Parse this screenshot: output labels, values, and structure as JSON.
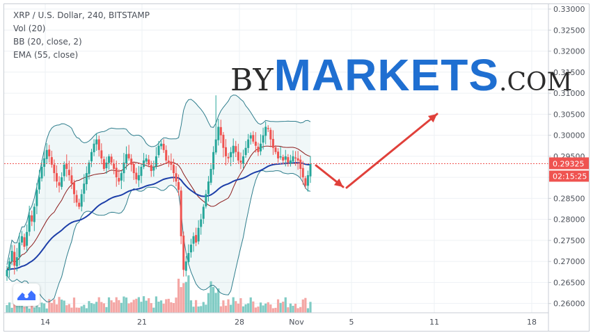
{
  "legend": {
    "symbol": "XRP / U.S. Dollar, 240, BITSTAMP",
    "vol": "Vol (20)",
    "bb": "BB (20, close, 2)",
    "ema": "EMA (55, close)"
  },
  "watermark": {
    "by": "BY",
    "markets": "MARKETS",
    "dotcom": ".COM"
  },
  "colors": {
    "up": "#26a69a",
    "down": "#ef5350",
    "bb_band": "#2e7d8c",
    "bb_basis": "#8b1a1a",
    "ema": "#1c3ea8",
    "arrow": "#e0403a",
    "price_label": "#ef5350",
    "vol_up": "#80cbc4",
    "vol_down": "#f4a6a4"
  },
  "chart_data": {
    "type": "candlestick",
    "symbol": "XRP / U.S. Dollar",
    "timeframe": "240",
    "exchange": "BITSTAMP",
    "x_ticks": [
      "14",
      "21",
      "28",
      "Nov",
      "5",
      "11",
      "18"
    ],
    "y_ticks": [
      "0.33000",
      "0.32500",
      "0.32000",
      "0.31500",
      "0.31000",
      "0.30500",
      "0.30000",
      "0.29500",
      "0.29000",
      "0.28500",
      "0.28000",
      "0.27500",
      "0.27000",
      "0.26500",
      "0.26000"
    ],
    "ylim": [
      0.2578,
      0.3305
    ],
    "last_price": "0.29325",
    "countdown": "02:15:25",
    "grid": true,
    "indicators": [
      "Vol (20)",
      "BB (20, close, 2)",
      "EMA (55, close)"
    ],
    "closes": [
      0.268,
      0.27,
      0.2725,
      0.269,
      0.271,
      0.2745,
      0.276,
      0.2735,
      0.277,
      0.281,
      0.2795,
      0.283,
      0.287,
      0.29,
      0.2925,
      0.2945,
      0.2965,
      0.295,
      0.293,
      0.291,
      0.289,
      0.288,
      0.29,
      0.293,
      0.292,
      0.2905,
      0.2885,
      0.286,
      0.284,
      0.283,
      0.286,
      0.2885,
      0.291,
      0.2935,
      0.296,
      0.298,
      0.299,
      0.2965,
      0.2945,
      0.292,
      0.2935,
      0.295,
      0.2935,
      0.292,
      0.29,
      0.289,
      0.291,
      0.2935,
      0.2955,
      0.2945,
      0.293,
      0.291,
      0.2895,
      0.2905,
      0.2925,
      0.294,
      0.2945,
      0.293,
      0.2915,
      0.2925,
      0.295,
      0.2975,
      0.298,
      0.2965,
      0.294,
      0.2935,
      0.293,
      0.291,
      0.289,
      0.287,
      0.276,
      0.268,
      0.27,
      0.272,
      0.274,
      0.276,
      0.2745,
      0.278,
      0.28,
      0.283,
      0.286,
      0.289,
      0.292,
      0.296,
      0.299,
      0.302,
      0.3,
      0.297,
      0.295,
      0.2945,
      0.296,
      0.2975,
      0.296,
      0.294,
      0.2935,
      0.295,
      0.297,
      0.299,
      0.3,
      0.2985,
      0.2975,
      0.296,
      0.298,
      0.3,
      0.302,
      0.3015,
      0.299,
      0.297,
      0.296,
      0.2945,
      0.295,
      0.294,
      0.295,
      0.2935,
      0.294,
      0.295,
      0.2945,
      0.294,
      0.292,
      0.29,
      0.288,
      0.2905,
      0.2932
    ]
  }
}
